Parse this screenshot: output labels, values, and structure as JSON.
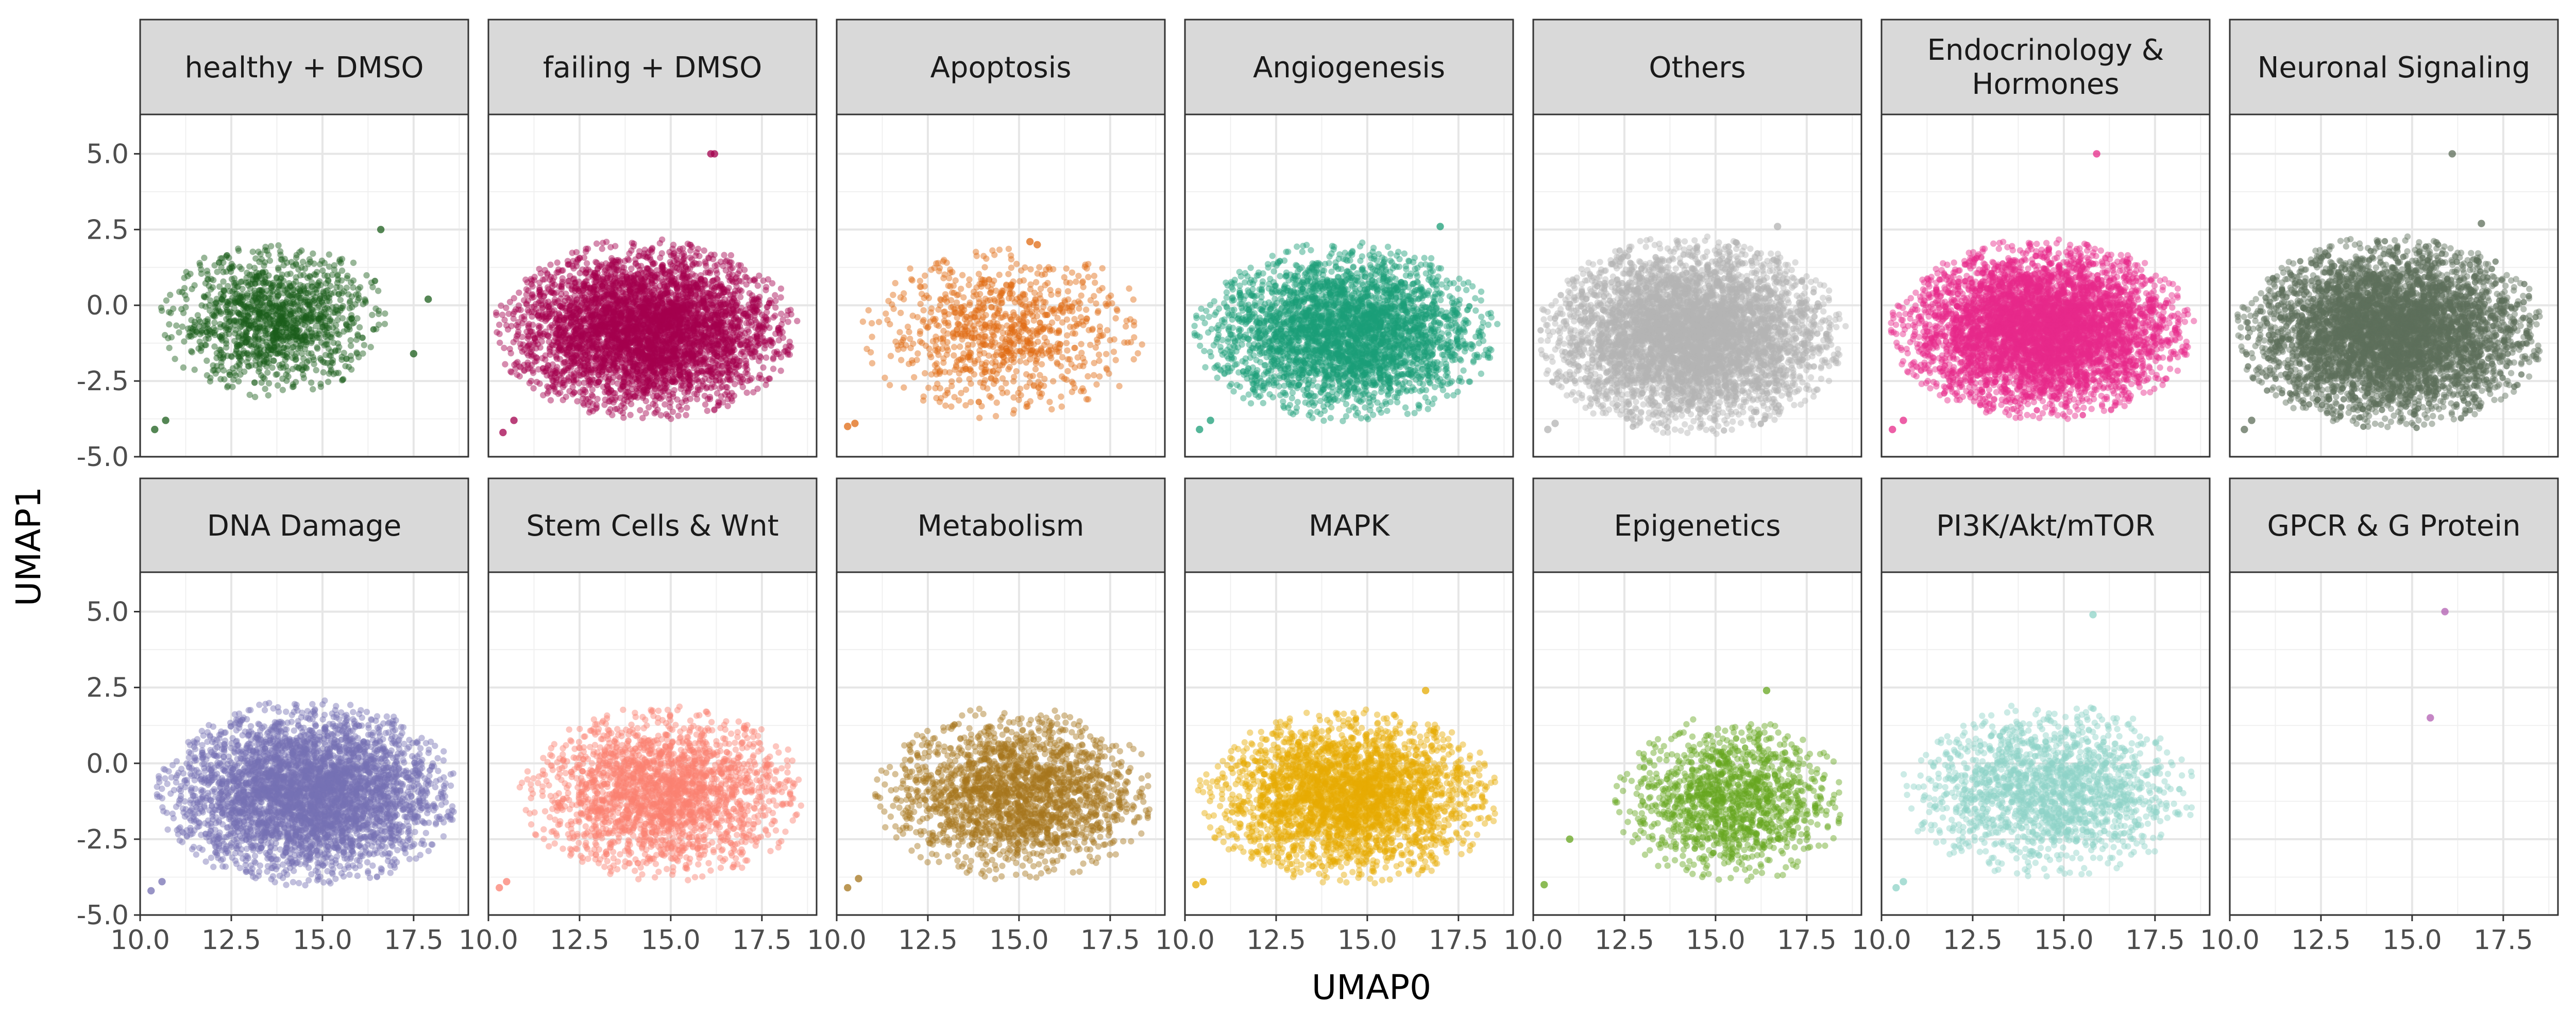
{
  "chart_data": {
    "type": "scatter",
    "xlabel": "UMAP0",
    "ylabel": "UMAP1",
    "xlim": [
      10,
      19
    ],
    "ylim": [
      -5,
      6.3
    ],
    "x_ticks": [
      "10.0",
      "12.5",
      "15.0",
      "17.5"
    ],
    "x_tick_values": [
      10,
      12.5,
      15,
      17.5
    ],
    "y_ticks": [
      "-5.0",
      "-2.5",
      "0.0",
      "2.5",
      "5.0"
    ],
    "y_tick_values": [
      -5,
      -2.5,
      0,
      2.5,
      5
    ],
    "grid": true,
    "legend": "none",
    "layout": {
      "rows": 2,
      "cols": 7
    },
    "panels": [
      {
        "title": "healthy + DMSO",
        "color": "#1b5e1b",
        "density": 1300,
        "cluster": {
          "cx": 13.7,
          "cy": -0.5,
          "rx": 3.2,
          "ry": 2.6
        },
        "extra": [
          [
            10.4,
            -4.1
          ],
          [
            10.7,
            -3.8
          ],
          [
            17.9,
            0.2
          ],
          [
            17.5,
            -1.6
          ],
          [
            16.6,
            2.5
          ]
        ]
      },
      {
        "title": "failing + DMSO",
        "color": "#a3004d",
        "density": 4200,
        "cluster": {
          "cx": 14.3,
          "cy": -0.8,
          "rx": 4.2,
          "ry": 3.0
        },
        "extra": [
          [
            10.4,
            -4.2
          ],
          [
            10.7,
            -3.8
          ],
          [
            16.1,
            5.0
          ],
          [
            16.2,
            5.0
          ]
        ]
      },
      {
        "title": "Apoptosis",
        "color": "#e06a12",
        "density": 900,
        "cluster": {
          "cx": 14.6,
          "cy": -0.9,
          "rx": 4.0,
          "ry": 2.9
        },
        "extra": [
          [
            10.3,
            -4.0
          ],
          [
            10.5,
            -3.9
          ],
          [
            15.5,
            2.0
          ],
          [
            15.3,
            2.1
          ]
        ]
      },
      {
        "title": "Angiogenesis",
        "color": "#1b9e77",
        "density": 3300,
        "cluster": {
          "cx": 14.4,
          "cy": -0.9,
          "rx": 4.2,
          "ry": 3.0
        },
        "extra": [
          [
            10.4,
            -4.1
          ],
          [
            10.7,
            -3.8
          ],
          [
            17.0,
            2.6
          ]
        ]
      },
      {
        "title": "Others",
        "color": "#b3b3b3",
        "density": 5200,
        "cluster": {
          "cx": 14.3,
          "cy": -1.0,
          "rx": 4.3,
          "ry": 3.3
        },
        "extra": [
          [
            10.4,
            -4.1
          ],
          [
            10.6,
            -3.9
          ],
          [
            16.7,
            2.6
          ]
        ]
      },
      {
        "title": "Endocrinology & Hormones",
        "color": "#e7298a",
        "density": 5000,
        "cluster": {
          "cx": 14.4,
          "cy": -0.8,
          "rx": 4.2,
          "ry": 3.0
        },
        "extra": [
          [
            10.3,
            -4.1
          ],
          [
            10.6,
            -3.8
          ],
          [
            15.9,
            5.0
          ]
        ]
      },
      {
        "title": "Neuronal Signaling",
        "color": "#5d6e5a",
        "density": 5600,
        "cluster": {
          "cx": 14.4,
          "cy": -0.9,
          "rx": 4.3,
          "ry": 3.2
        },
        "extra": [
          [
            10.4,
            -4.1
          ],
          [
            10.6,
            -3.8
          ],
          [
            16.1,
            5.0
          ],
          [
            16.9,
            2.7
          ]
        ]
      },
      {
        "title": "DNA Damage",
        "color": "#7570b3",
        "density": 4000,
        "cluster": {
          "cx": 14.6,
          "cy": -1.0,
          "rx": 4.2,
          "ry": 3.1
        },
        "extra": [
          [
            10.3,
            -4.2
          ],
          [
            10.6,
            -3.9
          ]
        ]
      },
      {
        "title": "Stem Cells & Wnt",
        "color": "#fb8072",
        "density": 2200,
        "cluster": {
          "cx": 14.8,
          "cy": -1.0,
          "rx": 4.0,
          "ry": 2.9
        },
        "extra": [
          [
            10.3,
            -4.1
          ],
          [
            10.5,
            -3.9
          ]
        ]
      },
      {
        "title": "Metabolism",
        "color": "#a6761d",
        "density": 2000,
        "cluster": {
          "cx": 14.9,
          "cy": -1.0,
          "rx": 3.9,
          "ry": 2.9
        },
        "extra": [
          [
            10.3,
            -4.1
          ],
          [
            10.6,
            -3.8
          ]
        ]
      },
      {
        "title": "MAPK",
        "color": "#e6ab02",
        "density": 2900,
        "cluster": {
          "cx": 14.5,
          "cy": -1.1,
          "rx": 4.2,
          "ry": 2.9
        },
        "extra": [
          [
            10.3,
            -4.0
          ],
          [
            10.5,
            -3.9
          ],
          [
            16.6,
            2.4
          ]
        ]
      },
      {
        "title": "Epigenetics",
        "color": "#66a61e",
        "density": 1300,
        "cluster": {
          "cx": 15.4,
          "cy": -1.2,
          "rx": 3.2,
          "ry": 2.8
        },
        "extra": [
          [
            10.3,
            -4.0
          ],
          [
            11.0,
            -2.5
          ],
          [
            16.4,
            2.4
          ]
        ]
      },
      {
        "title": "PI3K/Akt/mTOR",
        "color": "#8dd3c7",
        "density": 1700,
        "cluster": {
          "cx": 14.6,
          "cy": -0.9,
          "rx": 4.1,
          "ry": 2.9
        },
        "extra": [
          [
            10.4,
            -4.1
          ],
          [
            10.6,
            -3.9
          ],
          [
            15.8,
            4.9
          ]
        ]
      },
      {
        "title": "GPCR & G Protein",
        "color": "#b15eb1",
        "density": 0,
        "cluster": null,
        "extra": [
          [
            15.9,
            5.0
          ],
          [
            15.5,
            1.5
          ]
        ]
      }
    ]
  }
}
